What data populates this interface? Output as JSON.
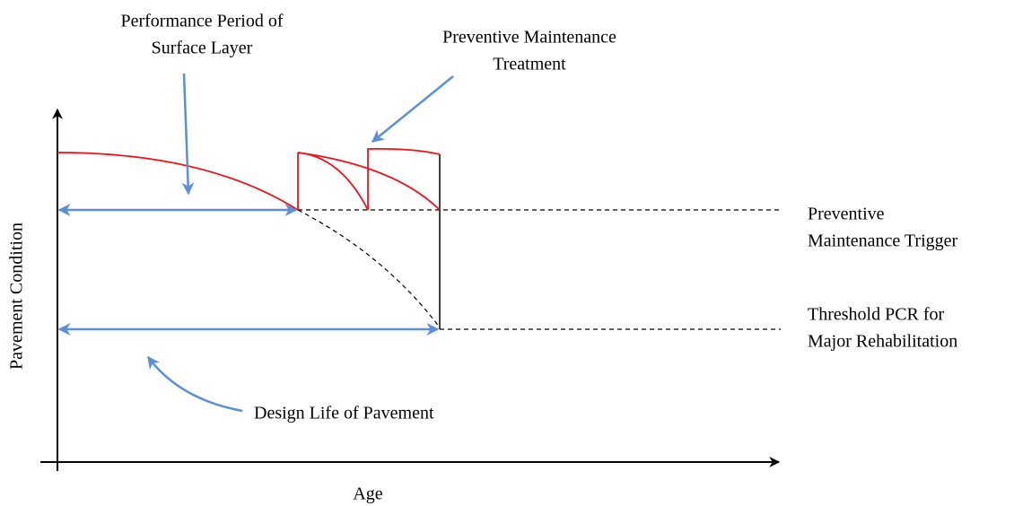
{
  "diagram": {
    "y_axis_label": "Pavement Condition",
    "x_axis_label": "Age",
    "annotations": {
      "performance_period": [
        "Performance Period of",
        "Surface Layer"
      ],
      "pm_treatment": [
        "Preventive Maintenance",
        "Treatment"
      ],
      "pm_trigger": [
        "Preventive",
        "Maintenance Trigger"
      ],
      "threshold": [
        "Threshold PCR for",
        "Major Rehabilitation"
      ],
      "design_life": "Design Life of Pavement"
    }
  }
}
